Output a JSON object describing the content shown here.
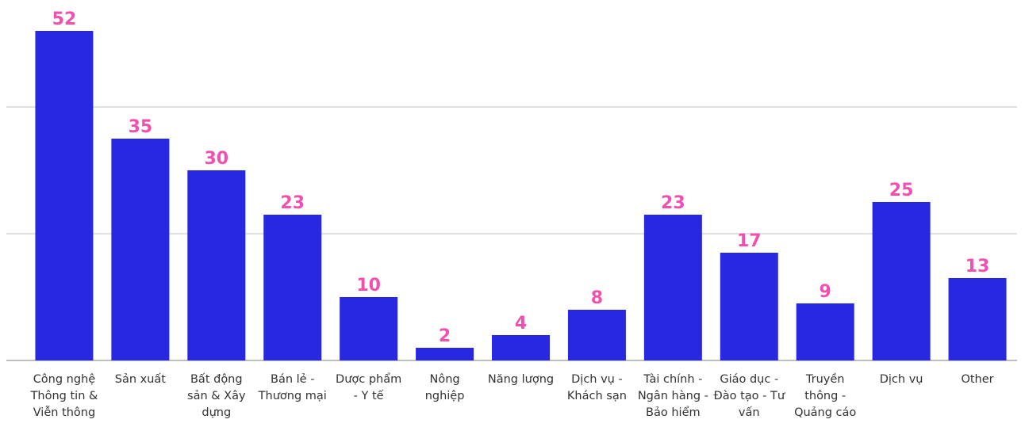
{
  "chart_data": {
    "type": "bar",
    "categories": [
      "Công nghệ Thông tin & Viễn thông",
      "Sản xuất",
      "Bất động sản & Xây dựng",
      "Bán lẻ - Thương mại",
      "Dược phẩm - Y tế",
      "Nông nghiệp",
      "Năng lượng",
      "Dịch vụ - Khách sạn",
      "Tài chính - Ngân hàng - Bảo hiểm",
      "Giáo dục - Đào tạo - Tư vấn",
      "Truyền thông - Quảng cáo",
      "Dịch vụ",
      "Other"
    ],
    "values": [
      52,
      35,
      30,
      23,
      10,
      2,
      4,
      8,
      23,
      17,
      9,
      25,
      13
    ],
    "color": "#2828e0",
    "label_color": "#f050b0",
    "ylim": [
      0,
      56
    ],
    "yticks": [
      0,
      20,
      40
    ],
    "grid": true
  }
}
